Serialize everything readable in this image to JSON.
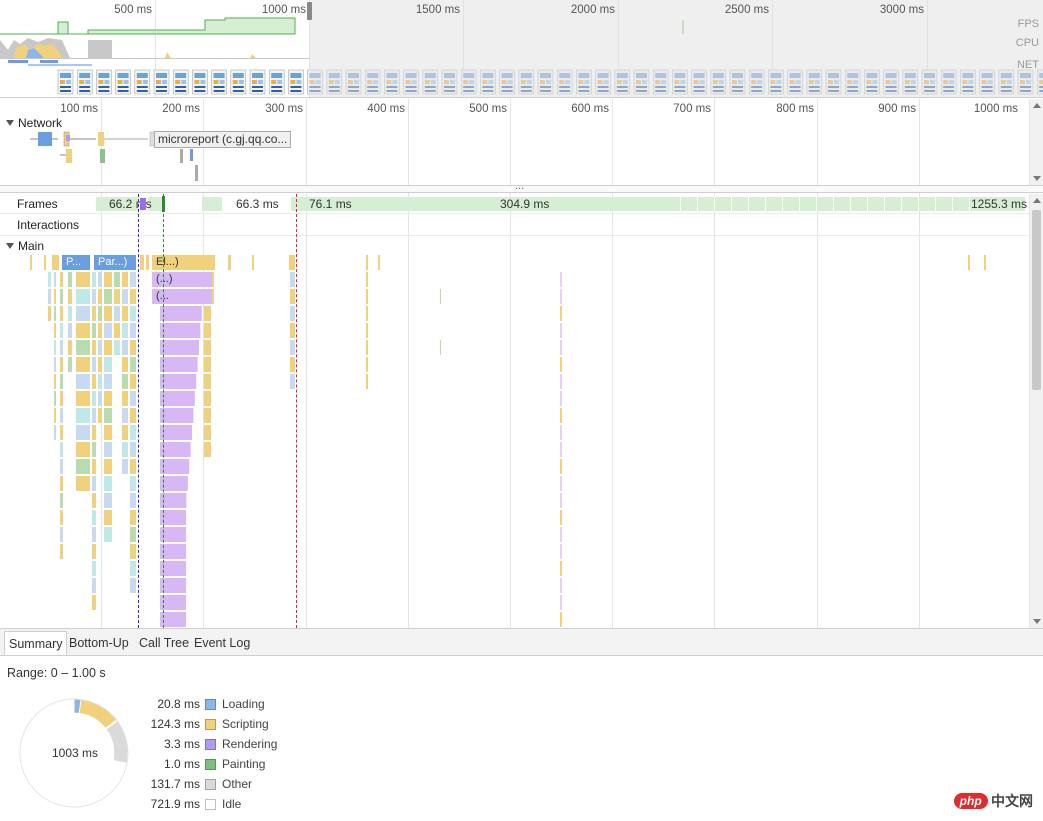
{
  "overview": {
    "ticks": [
      "500 ms",
      "1000 ms",
      "1500 ms",
      "2000 ms",
      "2500 ms",
      "3000 ms"
    ],
    "lane_labels": [
      "FPS",
      "CPU",
      "NET"
    ]
  },
  "ruler": {
    "ticks": [
      "100 ms",
      "200 ms",
      "300 ms",
      "400 ms",
      "500 ms",
      "600 ms",
      "700 ms",
      "800 ms",
      "900 ms",
      "1000 ms"
    ]
  },
  "network": {
    "label": "Network",
    "request_label": "microreport (c.gj.qq.co..."
  },
  "splitter": {
    "label": "..."
  },
  "frames": {
    "label": "Frames",
    "durations": [
      "66.2 ms",
      "66.3 ms",
      "76.1 ms",
      "304.9 ms",
      "1255.3 ms"
    ]
  },
  "interactions": {
    "label": "Interactions"
  },
  "main": {
    "label": "Main",
    "events": [
      "P...",
      "Par...)",
      "El...)",
      "(...)",
      "(..."
    ]
  },
  "tabs": [
    {
      "label": "Summary",
      "active": true
    },
    {
      "label": "Bottom-Up",
      "active": false
    },
    {
      "label": "Call Tree",
      "active": false
    },
    {
      "label": "Event Log",
      "active": false
    }
  ],
  "summary": {
    "range": "Range: 0 – 1.00 s",
    "total": "1003 ms",
    "categories": [
      {
        "value": "20.8 ms",
        "name": "Loading",
        "color": "#8cb6ea",
        "ms": 20.8
      },
      {
        "value": "124.3 ms",
        "name": "Scripting",
        "color": "#f2d17c",
        "ms": 124.3
      },
      {
        "value": "3.3 ms",
        "name": "Rendering",
        "color": "#af9bf0",
        "ms": 3.3
      },
      {
        "value": "1.0 ms",
        "name": "Painting",
        "color": "#80c07e",
        "ms": 1.0
      },
      {
        "value": "131.7 ms",
        "name": "Other",
        "color": "#dadada",
        "ms": 131.7
      },
      {
        "value": "721.9 ms",
        "name": "Idle",
        "color": "#ffffff",
        "ms": 721.9
      }
    ]
  },
  "watermark": {
    "text": "中文网",
    "logo": "php"
  }
}
